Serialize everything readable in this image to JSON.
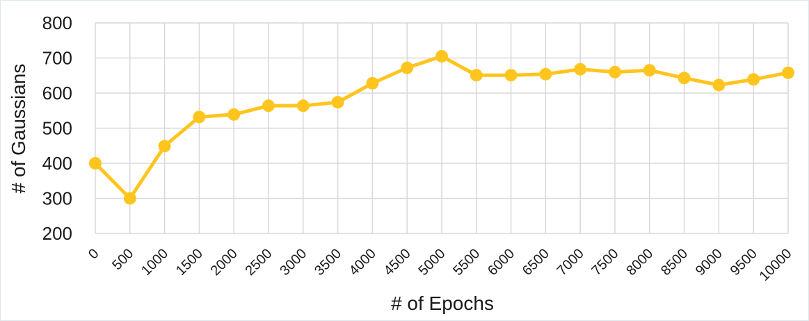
{
  "chart_data": {
    "type": "line",
    "title": "",
    "xlabel": "# of Epochs",
    "ylabel": "# of Gaussians",
    "ylim": [
      200,
      800
    ],
    "yticks": [
      "200",
      "300",
      "400",
      "500",
      "600",
      "700",
      "800"
    ],
    "grid": true,
    "legend": "none",
    "colors": {
      "line": "#FFC51F",
      "grid": "#d9d9d9",
      "text": "#1a1a1a"
    },
    "categories": [
      "0",
      "500",
      "1000",
      "1500",
      "2000",
      "2500",
      "3000",
      "3500",
      "4000",
      "4500",
      "5000",
      "5500",
      "6000",
      "6500",
      "7000",
      "7500",
      "8000",
      "8500",
      "9000",
      "9500",
      "10000"
    ],
    "series": [
      {
        "values": [
          400,
          300,
          449,
          532,
          539,
          564,
          564,
          574,
          628,
          672,
          705,
          651,
          651,
          654,
          668,
          660,
          665,
          643,
          623,
          639,
          658
        ]
      }
    ]
  }
}
